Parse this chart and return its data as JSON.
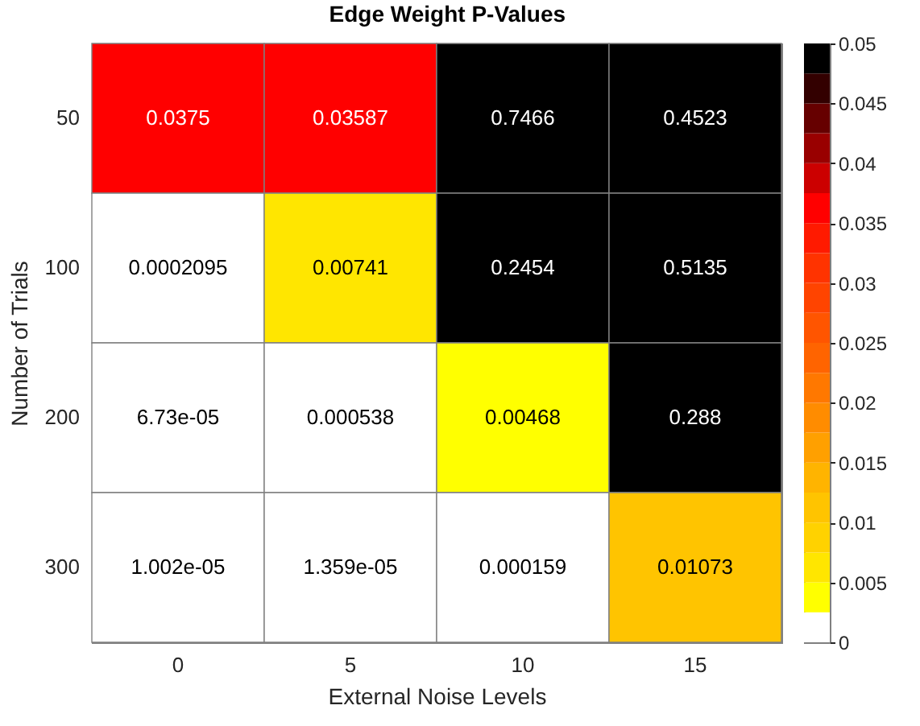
{
  "chart_data": {
    "type": "heatmap",
    "title": "Edge Weight P-Values",
    "xlabel": "External Noise Levels",
    "ylabel": "Number of Trials",
    "categories": [
      "0",
      "5",
      "10",
      "15"
    ],
    "y_categories": [
      "50",
      "100",
      "200",
      "300"
    ],
    "cells": [
      [
        0.0375,
        0.03587,
        0.7466,
        0.4523
      ],
      [
        0.0002095,
        0.00741,
        0.2454,
        0.5135
      ],
      [
        6.73e-05,
        0.000538,
        0.00468,
        0.288
      ],
      [
        1.002e-05,
        1.359e-05,
        0.000159,
        0.01073
      ]
    ],
    "cell_labels": [
      [
        "0.0375",
        "0.03587",
        "0.7466",
        "0.4523"
      ],
      [
        "0.0002095",
        "0.00741",
        "0.2454",
        "0.5135"
      ],
      [
        "6.73e-05",
        "0.000538",
        "0.00468",
        "0.288"
      ],
      [
        "1.002e-05",
        "1.359e-05",
        "0.000159",
        "0.01073"
      ]
    ],
    "clim": [
      0,
      0.05
    ],
    "cticks": [
      0,
      0.005,
      0.01,
      0.015,
      0.02,
      0.025,
      0.03,
      0.035,
      0.04,
      0.045,
      0.05
    ],
    "colors": [
      "#ffffff",
      "#ffff00",
      "#ffe600",
      "#ffd200",
      "#ffc400",
      "#ffb400",
      "#ffa000",
      "#ff8c00",
      "#ff7800",
      "#ff6400",
      "#ff5500",
      "#ff4400",
      "#ff3300",
      "#ff1a00",
      "#ff0000",
      "#cc0000",
      "#990000",
      "#660000",
      "#330000",
      "#000000"
    ]
  }
}
